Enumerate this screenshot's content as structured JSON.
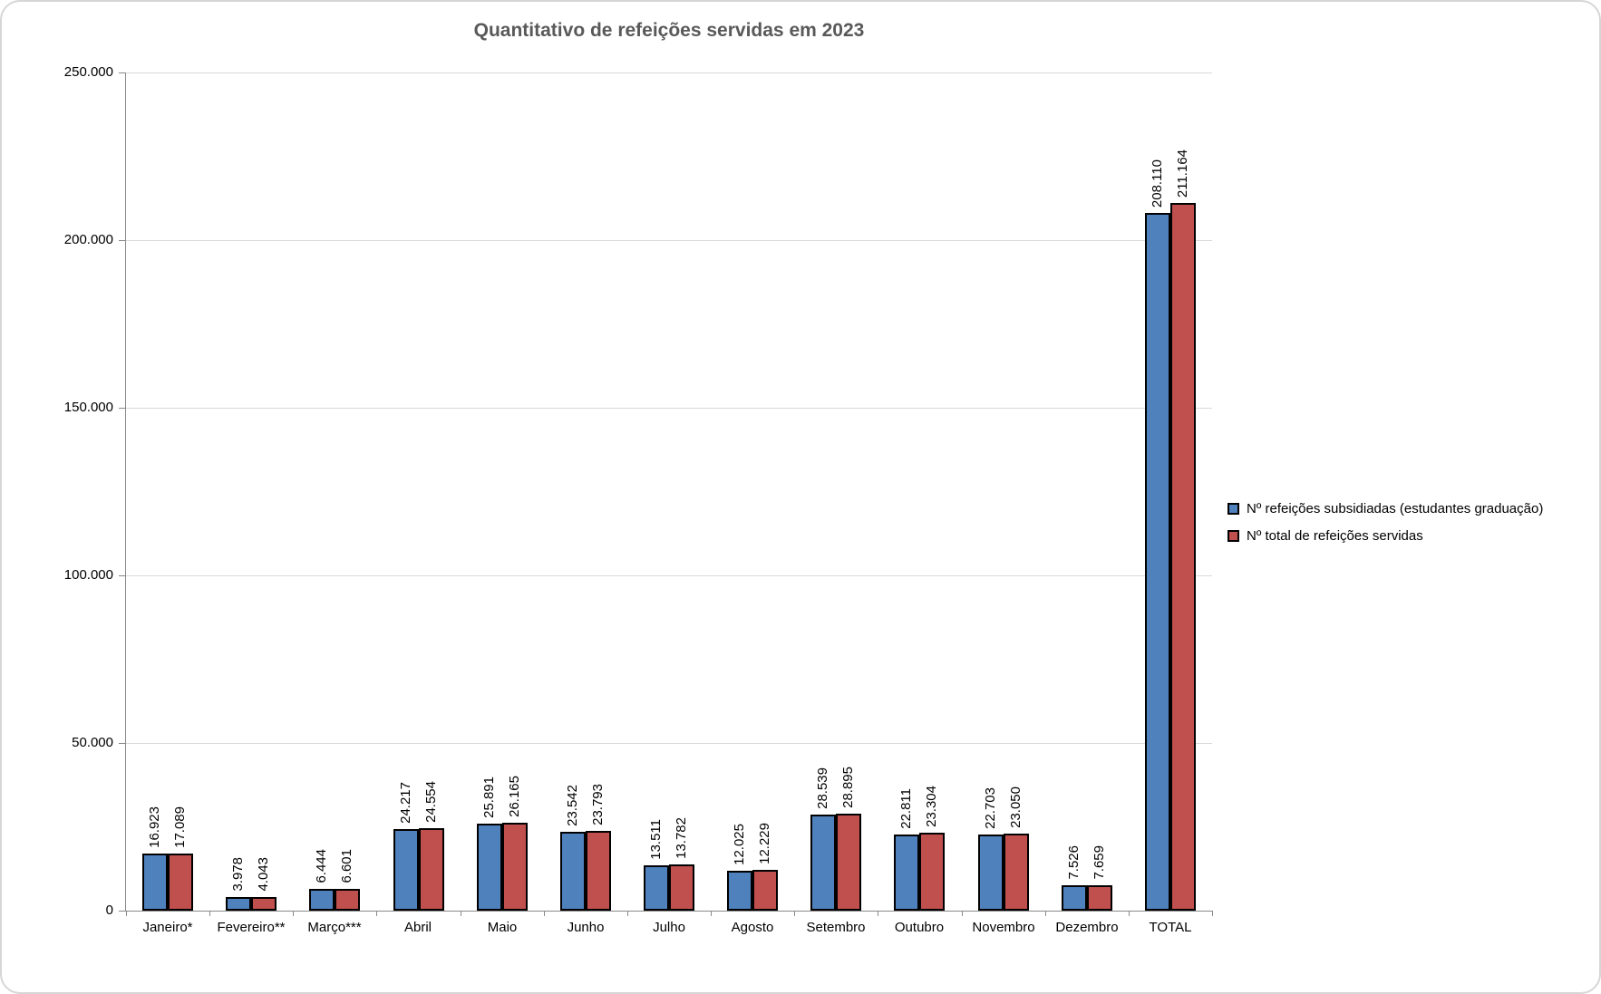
{
  "chart_data": {
    "type": "bar",
    "title": "Quantitativo de refeições servidas em 2023",
    "categories": [
      "Janeiro*",
      "Fevereiro**",
      "Março***",
      "Abril",
      "Maio",
      "Junho",
      "Julho",
      "Agosto",
      "Setembro",
      "Outubro",
      "Novembro",
      "Dezembro",
      "TOTAL"
    ],
    "series": [
      {
        "name": "Nº refeições subsidiadas (estudantes graduação)",
        "color": "#4F81BD",
        "values": [
          16923,
          3978,
          6444,
          24217,
          25891,
          23542,
          13511,
          12025,
          28539,
          22811,
          22703,
          7526,
          208110
        ]
      },
      {
        "name": "Nº total de refeições servidas",
        "color": "#C0504D",
        "values": [
          17089,
          4043,
          6601,
          24554,
          26165,
          23793,
          13782,
          12229,
          28895,
          23304,
          23050,
          7659,
          211164
        ]
      }
    ],
    "ylim": [
      0,
      250000
    ],
    "y_step": 50000,
    "y_tick_labels": [
      "0",
      "50.000",
      "100.000",
      "150.000",
      "200.000",
      "250.000"
    ],
    "grid": true,
    "legend_position": "right",
    "data_labels": "rotated-90-above-bars",
    "number_format": "thousands-dot",
    "styles": {
      "grid_color": "#D9D9D9",
      "axis_color": "#898989",
      "bar_border_color": "#000000",
      "title_color": "#595959",
      "frame_border_color": "#D6D6D6"
    }
  }
}
